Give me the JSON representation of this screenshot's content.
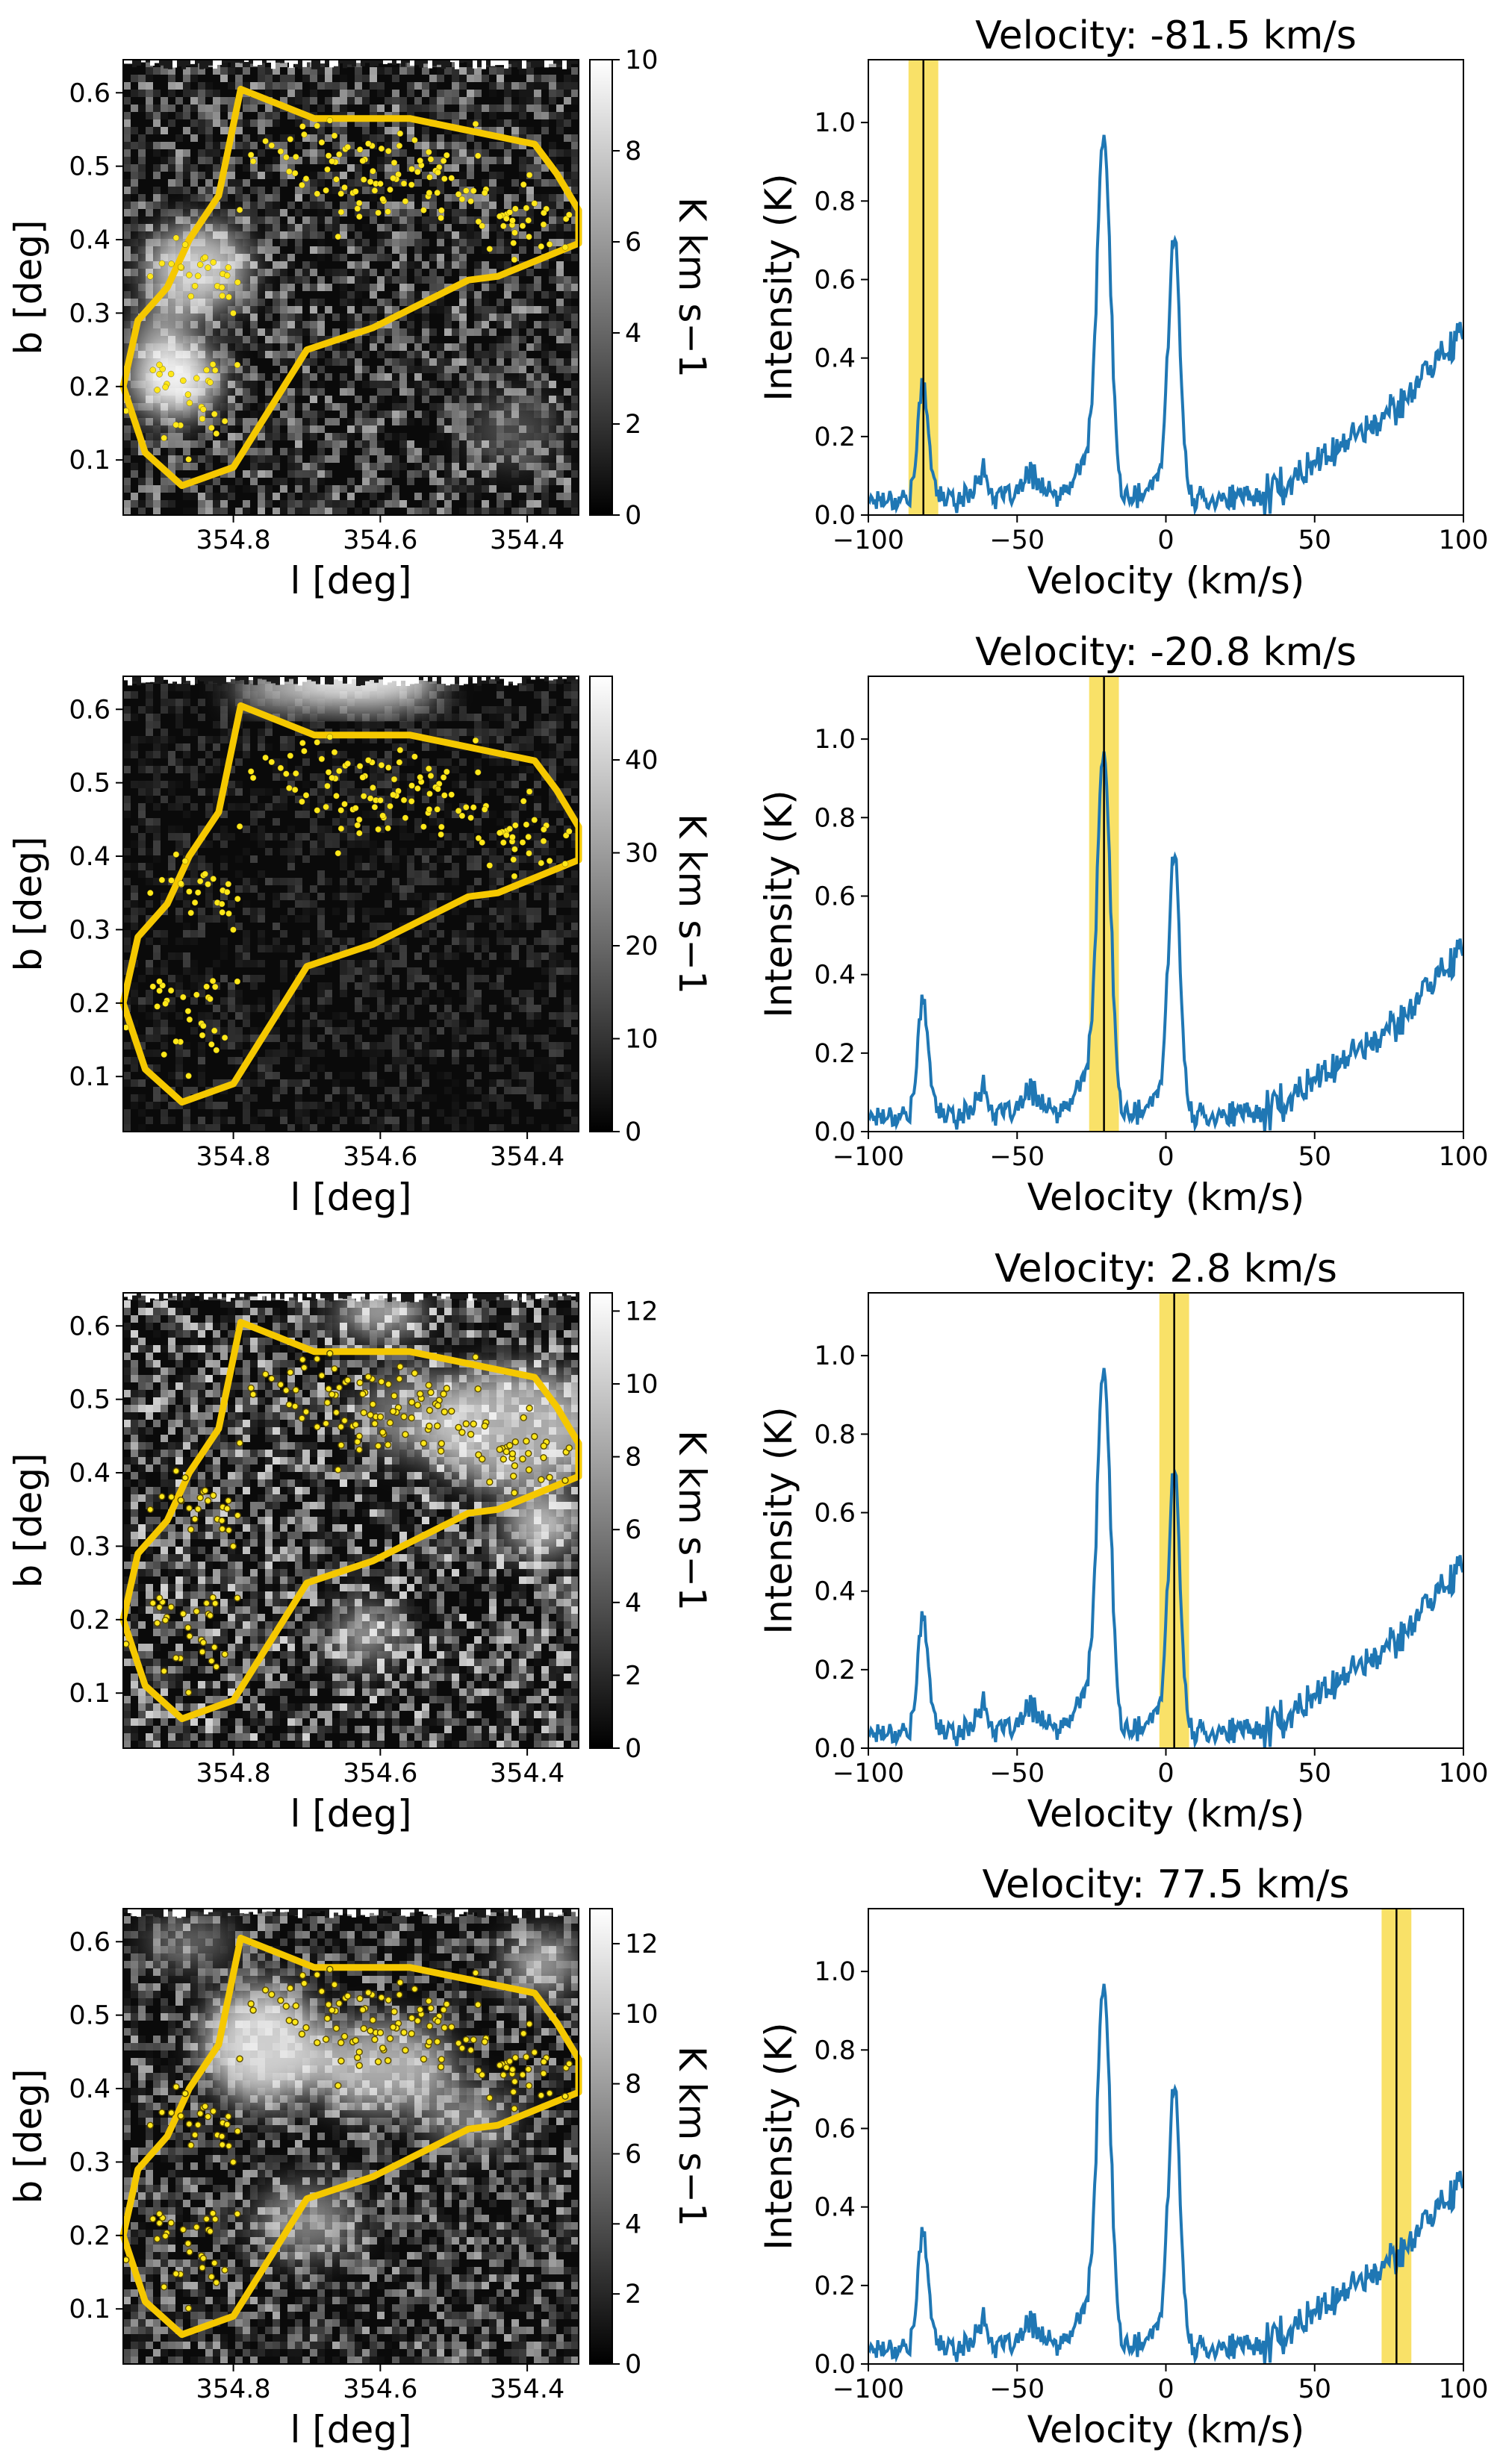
{
  "figure": {
    "rows": [
      {
        "map": {
          "colorbar": {
            "min": 0,
            "max": 10,
            "ticks": [
              0,
              2,
              4,
              6,
              8,
              10
            ],
            "label": "K km s−1"
          },
          "texture": "hot-left-clumps"
        },
        "spectrum": {
          "title": "Velocity: -81.5 km/s",
          "velocity": -81.5,
          "band": [
            -86.5,
            -76.5
          ]
        }
      },
      {
        "map": {
          "colorbar": {
            "min": 0,
            "max": 49,
            "ticks": [
              0,
              10,
              20,
              30,
              40
            ],
            "label": "K km s−1"
          },
          "texture": "dark-top-cloud"
        },
        "spectrum": {
          "title": "Velocity: -20.8 km/s",
          "velocity": -20.8,
          "band": [
            -25.8,
            -15.8
          ]
        }
      },
      {
        "map": {
          "colorbar": {
            "min": 0,
            "max": 12.5,
            "ticks": [
              0,
              2,
              4,
              6,
              8,
              10,
              12
            ],
            "label": "K km s−1"
          },
          "texture": "bright-upper-right"
        },
        "spectrum": {
          "title": "Velocity: 2.8 km/s",
          "velocity": 2.8,
          "band": [
            -2.2,
            7.8
          ]
        }
      },
      {
        "map": {
          "colorbar": {
            "min": 0,
            "max": 13,
            "ticks": [
              0,
              2,
              4,
              6,
              8,
              10,
              12
            ],
            "label": "K km s−1"
          },
          "texture": "filamentary-bright"
        },
        "spectrum": {
          "title": "Velocity: 77.5 km/s",
          "velocity": 77.5,
          "band": [
            72.5,
            82.5
          ]
        }
      }
    ],
    "map_axes": {
      "xlabel": "l [deg]",
      "ylabel": "b [deg]",
      "xticks": [
        354.8,
        354.6,
        354.4
      ],
      "yticks": [
        0.1,
        0.2,
        0.3,
        0.4,
        0.5,
        0.6
      ],
      "xlim": [
        354.95,
        354.33
      ],
      "ylim": [
        0.025,
        0.645
      ]
    },
    "spectrum_axes": {
      "xlabel": "Velocity (km/s)",
      "ylabel": "Intensity (K)",
      "xticks": [
        -100,
        -50,
        0,
        50,
        100
      ],
      "yticks": [
        0.0,
        0.2,
        0.4,
        0.6,
        0.8,
        1.0
      ],
      "xlim": [
        -100,
        100
      ],
      "ylim": [
        0,
        1.16
      ]
    },
    "colors": {
      "contour": "#f5c800",
      "source_marker": "#ffe81a",
      "marker_edge": "#5a4a00",
      "spectrum_line": "#1f77b4",
      "band": "#f7d736",
      "velocity_line": "#000000"
    }
  },
  "chart_data": [
    {
      "type": "line",
      "title": "Velocity: -81.5 km/s",
      "xlabel": "Velocity (km/s)",
      "ylabel": "Intensity (K)",
      "xlim": [
        -100,
        100
      ],
      "ylim": [
        0,
        1.16
      ],
      "velocity_marker": -81.5,
      "velocity_window": [
        -86.5,
        -76.5
      ],
      "spectrum_features": [
        {
          "velocity": -81.5,
          "peak": 0.32
        },
        {
          "velocity": -20.8,
          "peak": 0.93
        },
        {
          "velocity": 2.8,
          "peak": 0.72
        },
        {
          "velocity": 77.5,
          "peak": 0.3
        },
        {
          "velocity": 98,
          "peak": 0.48
        }
      ]
    },
    {
      "type": "line",
      "title": "Velocity: -20.8 km/s",
      "xlabel": "Velocity (km/s)",
      "ylabel": "Intensity (K)",
      "xlim": [
        -100,
        100
      ],
      "ylim": [
        0,
        1.16
      ],
      "velocity_marker": -20.8,
      "velocity_window": [
        -25.8,
        -15.8
      ]
    },
    {
      "type": "line",
      "title": "Velocity: 2.8 km/s",
      "xlabel": "Velocity (km/s)",
      "ylabel": "Intensity (K)",
      "xlim": [
        -100,
        100
      ],
      "ylim": [
        0,
        1.16
      ],
      "velocity_marker": 2.8,
      "velocity_window": [
        -2.2,
        7.8
      ]
    },
    {
      "type": "line",
      "title": "Velocity: 77.5 km/s",
      "xlabel": "Velocity (km/s)",
      "ylabel": "Intensity (K)",
      "xlim": [
        -100,
        100
      ],
      "ylim": [
        0,
        1.16
      ],
      "velocity_marker": 77.5,
      "velocity_window": [
        72.5,
        82.5
      ]
    },
    {
      "type": "heatmap",
      "xlabel": "l [deg]",
      "ylabel": "b [deg]",
      "xlim": [
        354.95,
        354.33
      ],
      "ylim": [
        0.025,
        0.645
      ],
      "colorbar_label": "K km s−1",
      "colorbar_ranges": [
        [
          0,
          10
        ],
        [
          0,
          49
        ],
        [
          0,
          12.5
        ],
        [
          0,
          13
        ]
      ],
      "region_outline_lb": [
        [
          354.79,
          0.605
        ],
        [
          354.69,
          0.565
        ],
        [
          354.56,
          0.565
        ],
        [
          354.39,
          0.53
        ],
        [
          354.36,
          0.49
        ],
        [
          354.33,
          0.44
        ],
        [
          354.33,
          0.395
        ],
        [
          354.44,
          0.35
        ],
        [
          354.48,
          0.345
        ],
        [
          354.61,
          0.28
        ],
        [
          354.7,
          0.25
        ],
        [
          354.8,
          0.09
        ],
        [
          354.87,
          0.065
        ],
        [
          354.92,
          0.11
        ],
        [
          354.95,
          0.2
        ],
        [
          354.93,
          0.29
        ],
        [
          354.89,
          0.335
        ],
        [
          354.86,
          0.4
        ],
        [
          354.82,
          0.46
        ]
      ]
    }
  ]
}
